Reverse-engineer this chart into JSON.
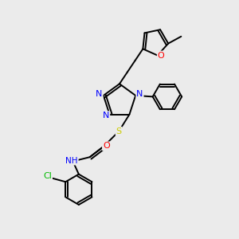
{
  "bg_color": "#ebebeb",
  "atom_colors": {
    "N": "#0000ff",
    "O": "#ff0000",
    "S": "#cccc00",
    "Cl": "#00bb00",
    "C": "#000000",
    "H": "#666666"
  },
  "bond_color": "#000000",
  "bond_width": 1.4
}
